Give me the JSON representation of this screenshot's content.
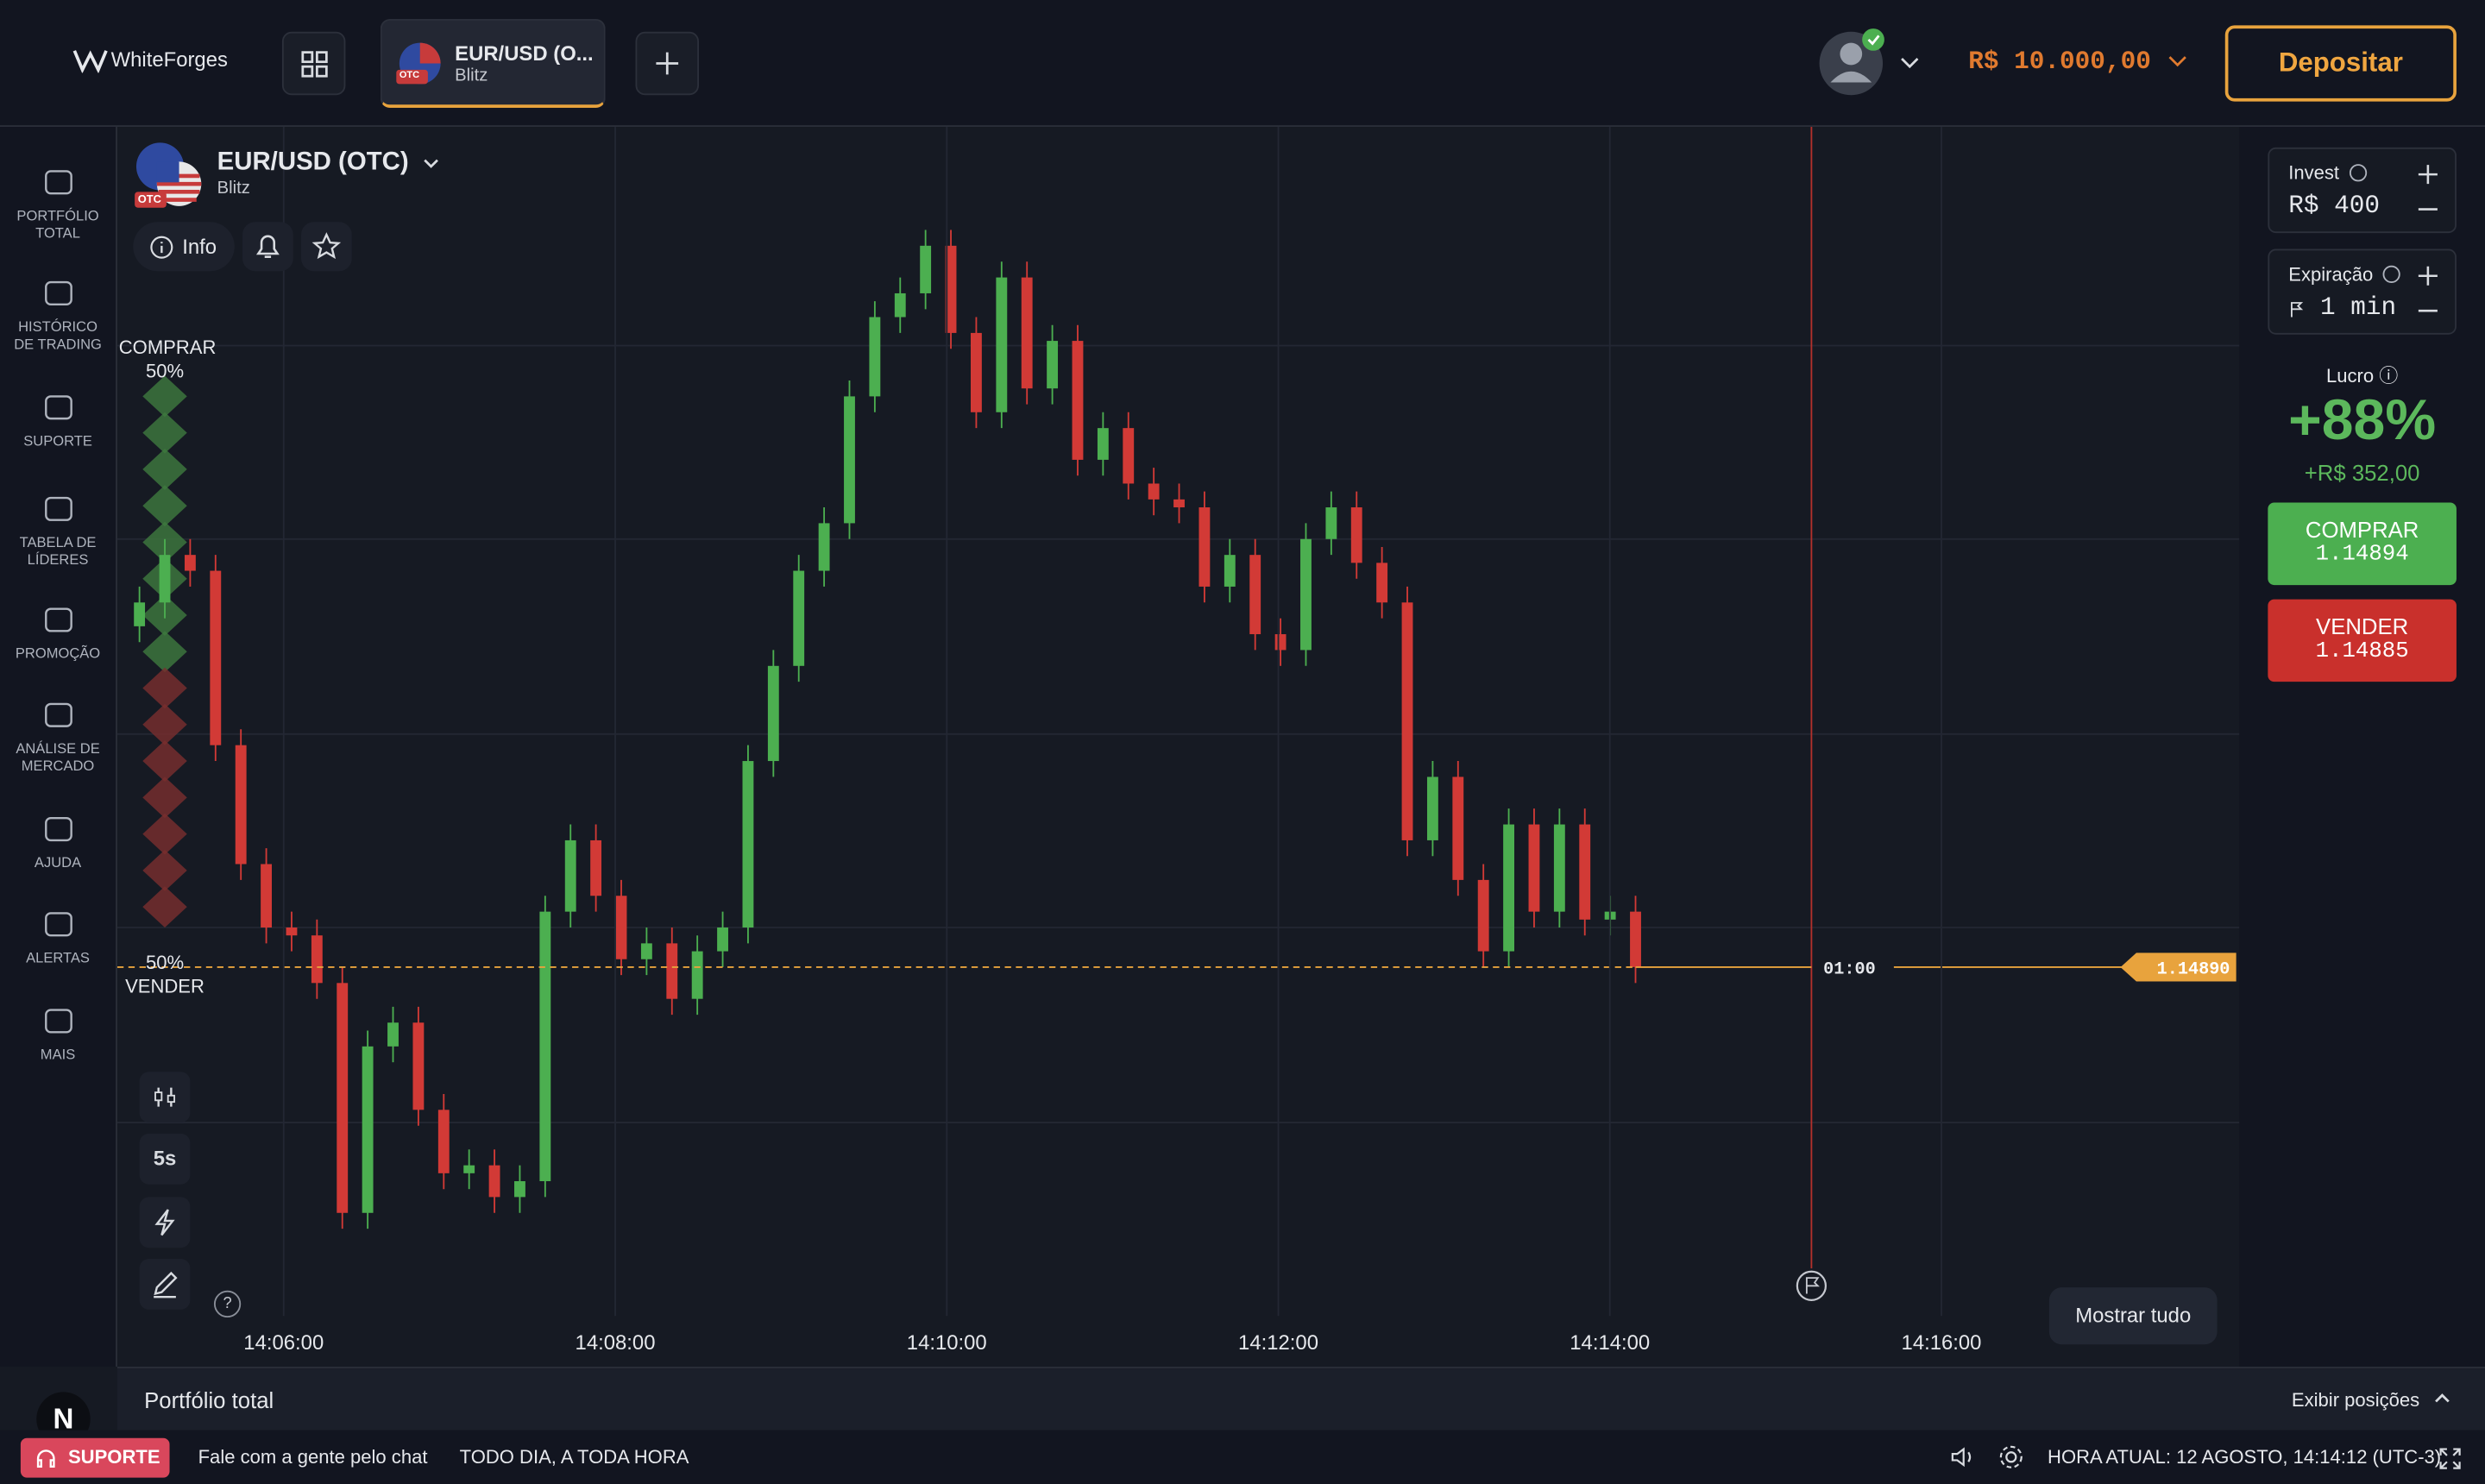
{
  "header": {
    "logo": "WhiteForges",
    "tab_title": "EUR/USD (O...",
    "tab_subtitle": "Blitz",
    "tab_badge": "OTC",
    "balance": "R$ 10.000,00",
    "deposit": "Depositar"
  },
  "sidebar": [
    "PORTFÓLIO TOTAL",
    "HISTÓRICO DE TRADING",
    "SUPORTE",
    "TABELA DE LÍDERES",
    "PROMOÇÃO",
    "ANÁLISE DE MERCADO",
    "AJUDA",
    "ALERTAS",
    "MAIS"
  ],
  "asset": {
    "name": "EUR/USD (OTC)",
    "mode": "Blitz",
    "badge": "OTC",
    "info": "Info"
  },
  "sentiment": {
    "buy_label": "COMPRAR",
    "buy": "50%",
    "sell": "50%",
    "sell_label": "VENDER"
  },
  "chart_data": {
    "type": "candlestick",
    "xticks": [
      "14:06:00",
      "14:08:00",
      "14:10:00",
      "14:12:00",
      "14:14:00",
      "14:16:00"
    ],
    "ylim": [
      1.14846,
      1.14996
    ],
    "colors": {
      "up": "#4caf50",
      "down": "#d23a36"
    },
    "candles": [
      [
        1.14933,
        1.14938,
        1.14931,
        1.14936
      ],
      [
        1.14936,
        1.14944,
        1.14934,
        1.14942
      ],
      [
        1.14942,
        1.14944,
        1.14938,
        1.1494
      ],
      [
        1.1494,
        1.14942,
        1.14916,
        1.14918
      ],
      [
        1.14918,
        1.1492,
        1.14901,
        1.14903
      ],
      [
        1.14903,
        1.14905,
        1.14893,
        1.14895
      ],
      [
        1.14895,
        1.14897,
        1.14892,
        1.14894
      ],
      [
        1.14894,
        1.14896,
        1.14886,
        1.14888
      ],
      [
        1.14888,
        1.1489,
        1.14857,
        1.14859
      ],
      [
        1.14859,
        1.14882,
        1.14857,
        1.1488
      ],
      [
        1.1488,
        1.14885,
        1.14878,
        1.14883
      ],
      [
        1.14883,
        1.14885,
        1.1487,
        1.14872
      ],
      [
        1.14872,
        1.14874,
        1.14862,
        1.14864
      ],
      [
        1.14864,
        1.14867,
        1.14862,
        1.14865
      ],
      [
        1.14865,
        1.14867,
        1.14859,
        1.14861
      ],
      [
        1.14861,
        1.14865,
        1.14859,
        1.14863
      ],
      [
        1.14863,
        1.14899,
        1.14861,
        1.14897
      ],
      [
        1.14897,
        1.14908,
        1.14895,
        1.14906
      ],
      [
        1.14906,
        1.14908,
        1.14897,
        1.14899
      ],
      [
        1.14899,
        1.14901,
        1.14889,
        1.14891
      ],
      [
        1.14891,
        1.14895,
        1.14889,
        1.14893
      ],
      [
        1.14893,
        1.14895,
        1.14884,
        1.14886
      ],
      [
        1.14886,
        1.14894,
        1.14884,
        1.14892
      ],
      [
        1.14892,
        1.14897,
        1.1489,
        1.14895
      ],
      [
        1.14895,
        1.14918,
        1.14893,
        1.14916
      ],
      [
        1.14916,
        1.1493,
        1.14914,
        1.14928
      ],
      [
        1.14928,
        1.14942,
        1.14926,
        1.1494
      ],
      [
        1.1494,
        1.14948,
        1.14938,
        1.14946
      ],
      [
        1.14946,
        1.14964,
        1.14944,
        1.14962
      ],
      [
        1.14962,
        1.14974,
        1.1496,
        1.14972
      ],
      [
        1.14972,
        1.14977,
        1.1497,
        1.14975
      ],
      [
        1.14975,
        1.14983,
        1.14973,
        1.14981
      ],
      [
        1.14981,
        1.14983,
        1.14968,
        1.1497
      ],
      [
        1.1497,
        1.14972,
        1.14958,
        1.1496
      ],
      [
        1.1496,
        1.14979,
        1.14958,
        1.14977
      ],
      [
        1.14977,
        1.14979,
        1.14961,
        1.14963
      ],
      [
        1.14963,
        1.14971,
        1.14961,
        1.14969
      ],
      [
        1.14969,
        1.14971,
        1.14952,
        1.14954
      ],
      [
        1.14954,
        1.1496,
        1.14952,
        1.14958
      ],
      [
        1.14958,
        1.1496,
        1.14949,
        1.14951
      ],
      [
        1.14951,
        1.14953,
        1.14947,
        1.14949
      ],
      [
        1.14949,
        1.14951,
        1.14946,
        1.14948
      ],
      [
        1.14948,
        1.1495,
        1.14936,
        1.14938
      ],
      [
        1.14938,
        1.14944,
        1.14936,
        1.14942
      ],
      [
        1.14942,
        1.14944,
        1.1493,
        1.14932
      ],
      [
        1.14932,
        1.14934,
        1.14928,
        1.1493
      ],
      [
        1.1493,
        1.14946,
        1.14928,
        1.14944
      ],
      [
        1.14944,
        1.1495,
        1.14942,
        1.14948
      ],
      [
        1.14948,
        1.1495,
        1.14939,
        1.14941
      ],
      [
        1.14941,
        1.14943,
        1.14934,
        1.14936
      ],
      [
        1.14936,
        1.14938,
        1.14904,
        1.14906
      ],
      [
        1.14906,
        1.14916,
        1.14904,
        1.14914
      ],
      [
        1.14914,
        1.14916,
        1.14899,
        1.14901
      ],
      [
        1.14901,
        1.14903,
        1.1489,
        1.14892
      ],
      [
        1.14892,
        1.1491,
        1.1489,
        1.14908
      ],
      [
        1.14908,
        1.1491,
        1.14895,
        1.14897
      ],
      [
        1.14897,
        1.1491,
        1.14895,
        1.14908
      ],
      [
        1.14908,
        1.1491,
        1.14894,
        1.14896
      ],
      [
        1.14896,
        1.14899,
        1.14894,
        1.14897
      ],
      [
        1.14897,
        1.14899,
        1.14888,
        1.1489
      ]
    ],
    "current_price": {
      "value": 1.1489,
      "label": "1.14890"
    },
    "timer": "01:00",
    "grid": true
  },
  "chart_tools": {
    "timeframe": "5s",
    "help": "?",
    "show_all": "Mostrar tudo"
  },
  "trade_panel": {
    "invest_label": "Invest",
    "invest": "R$ 400",
    "expiry_label": "Expiração",
    "expiry": "1 min",
    "profit_label": "Lucro",
    "profit_pct": "+88%",
    "profit": "+R$ 352,00",
    "buy_label": "COMPRAR",
    "buy_price": "1.14894",
    "sell_label": "VENDER",
    "sell_price": "1.14885"
  },
  "portfolio": {
    "title": "Portfólio total",
    "toggle": "Exibir posições"
  },
  "footer": {
    "avatar": "N",
    "support": "SUPORTE",
    "chat": "Fale com a gente pelo chat",
    "hours": "TODO DIA, A TODA HORA",
    "time": "HORA ATUAL: 12 AGOSTO, 14:14:12 (UTC-3)"
  }
}
